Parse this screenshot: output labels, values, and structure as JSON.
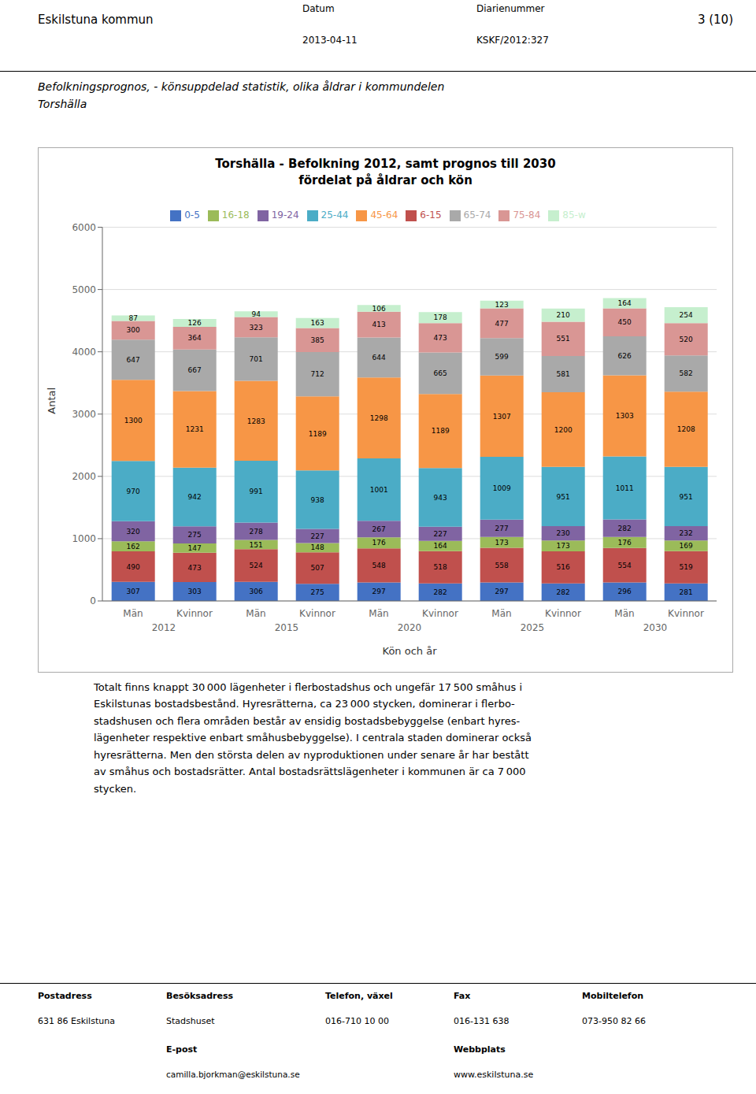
{
  "chart_data": {
    "type": "bar",
    "title": "Torshälla - Befolkning 2012, samt prognos till 2030\nfördelat på åldrar och kön",
    "subtitle": "Befolkningsprognos, - könsuppdelad statistik, olika åldrar i kommundelen\nTorshälla",
    "xlabel": "Kön och år",
    "ylabel": "Antal",
    "categories": [
      "Män",
      "Kvinnor",
      "Män",
      "Kvinnor",
      "Män",
      "Kvinnor",
      "Män",
      "Kvinnor",
      "Män",
      "Kvinnor"
    ],
    "category_groups": [
      "2012",
      "2015",
      "2020",
      "2025",
      "2030"
    ],
    "series": [
      {
        "name": "0-5",
        "color": "#4472C4",
        "values": [
          307,
          303,
          306,
          275,
          297,
          282,
          297,
          282,
          296,
          281
        ]
      },
      {
        "name": "6-15",
        "color": "#C0504D",
        "values": [
          490,
          473,
          524,
          507,
          548,
          518,
          558,
          516,
          554,
          519
        ]
      },
      {
        "name": "16-18",
        "color": "#9BBB59",
        "values": [
          162,
          147,
          151,
          148,
          176,
          164,
          173,
          173,
          176,
          169
        ]
      },
      {
        "name": "19-24",
        "color": "#8064A2",
        "values": [
          320,
          275,
          278,
          227,
          267,
          227,
          277,
          230,
          282,
          232
        ]
      },
      {
        "name": "25-44",
        "color": "#4BACC6",
        "values": [
          970,
          942,
          991,
          938,
          1001,
          943,
          1009,
          951,
          1011,
          951
        ]
      },
      {
        "name": "45-64",
        "color": "#F79646",
        "values": [
          1300,
          1231,
          1283,
          1189,
          1298,
          1189,
          1307,
          1200,
          1303,
          1208
        ]
      },
      {
        "name": "65-74",
        "color": "#A9A9A9",
        "values": [
          647,
          667,
          701,
          712,
          644,
          665,
          599,
          581,
          626,
          582
        ]
      },
      {
        "name": "75-84",
        "color": "#D99694",
        "values": [
          300,
          364,
          323,
          385,
          413,
          473,
          477,
          551,
          450,
          520
        ]
      },
      {
        "name": "85-w",
        "color": "#C6EFCE",
        "values": [
          87,
          126,
          94,
          163,
          106,
          178,
          123,
          210,
          164,
          254
        ]
      }
    ],
    "stacked": true,
    "data_labels": true,
    "ylim": [
      0,
      6000
    ],
    "yticks": [
      0,
      1000,
      2000,
      3000,
      4000,
      5000,
      6000
    ],
    "grid": true,
    "legend": "top",
    "annotations": [
      "Eskilstuna kommun",
      "Datum",
      "2013-04-11",
      "Diarienummer",
      "KSKF/2012:327",
      "3 (10)",
      "Totalt finns knappt 30 000 lägenheter i flerbostadshus och ungefär 17 500 småhus i\nEskilstunas bostadsbestånd. Hyresrätterna, ca 23 000 stycken, dominerar i flerbo-\nstadshusen och flera områden består av ensidig bostadsbebyggelse (enbart hyres-\nlägenheter respektive enbart småhusbebyggelse). I centrala staden dominerar också\nhyresrätterna. Men den största delen av nyproduktionen under senare år har bestått\nav småhus och bostadsrätter. Antal bostadsrättslägenheter i kommunen är ca 7 000\nstycken.",
      "Postadress",
      "631 86 Eskilstuna",
      "Besöksadress",
      "Stadshuset",
      "E-post",
      "camilla.bjorkman@eskilstuna.se",
      "Telefon, växel",
      "016-710 10 00",
      "Fax",
      "016-131 638",
      "Webbplats",
      "www.eskilstuna.se",
      "Mobiltelefon",
      "073-950 82 66"
    ]
  }
}
